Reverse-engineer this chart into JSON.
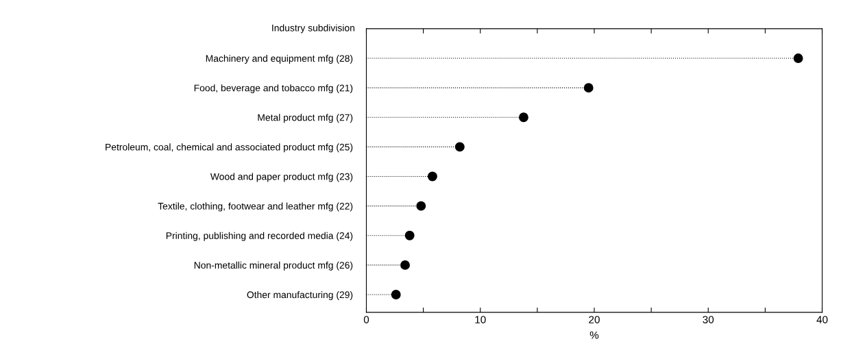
{
  "chart_data": {
    "type": "lollipop",
    "orientation": "horizontal",
    "ylabel": "Industry subdivision",
    "xlabel": "%",
    "categories": [
      "Machinery and equipment mfg (28)",
      "Food, beverage and tobacco mfg (21)",
      "Metal product mfg (27)",
      "Petroleum, coal, chemical and associated product mfg (25)",
      "Wood and paper product mfg (23)",
      "Textile, clothing, footwear and leather mfg (22)",
      "Printing, publishing and recorded media (24)",
      "Non-metallic mineral product mfg (26)",
      "Other manufacturing (29)"
    ],
    "values": [
      37.9,
      19.5,
      13.8,
      8.2,
      5.8,
      4.8,
      3.8,
      3.4,
      2.6
    ],
    "color": "#000000",
    "marker": "circle",
    "line_style": "dotted",
    "xlim": [
      0,
      40
    ],
    "xticks": [
      0,
      {
        "value": 5,
        "label": null
      },
      10,
      {
        "value": 15,
        "label": null
      },
      20,
      {
        "value": 25,
        "label": null
      },
      30,
      {
        "value": 35,
        "label": null
      },
      40
    ]
  }
}
